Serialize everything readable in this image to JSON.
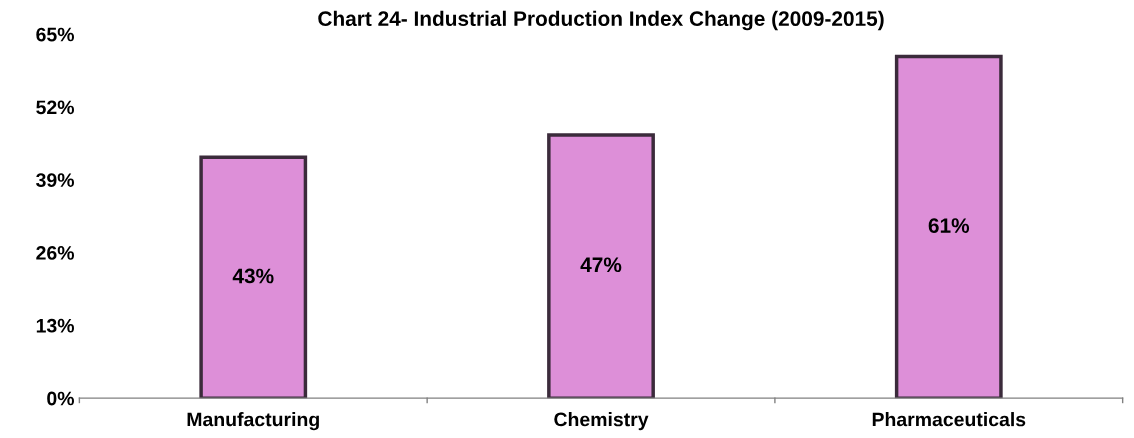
{
  "chart_data": {
    "type": "bar",
    "title": "Chart 24- Industrial Production Index Change (2009-2015)",
    "categories": [
      "Manufacturing",
      "Chemistry",
      "Pharmaceuticals"
    ],
    "values": [
      43,
      47,
      61
    ],
    "value_labels": [
      "43%",
      "47%",
      "61%"
    ],
    "color": "#dd8fd8",
    "ylim": [
      0,
      65
    ],
    "yticks": [
      {
        "value": 0,
        "label": "0%"
      },
      {
        "value": 13,
        "label": "13%"
      },
      {
        "value": 26,
        "label": "26%"
      },
      {
        "value": 39,
        "label": "39%"
      },
      {
        "value": 52,
        "label": "52%"
      },
      {
        "value": 65,
        "label": "65%"
      }
    ],
    "grid": false,
    "legend": false
  }
}
